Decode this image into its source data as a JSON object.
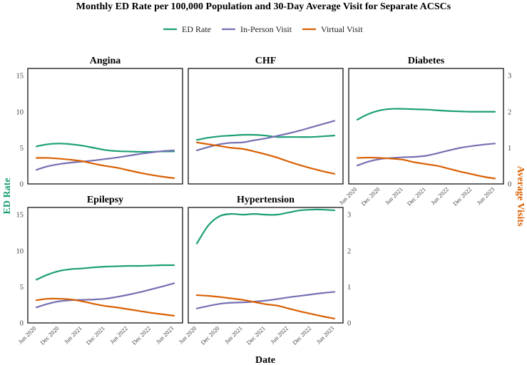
{
  "chart_data": {
    "type": "line",
    "title": "Monthly ED Rate per 100,000 Population and 30-Day Average Visit for Separate ACSCs",
    "xlabel": "Date",
    "ylabel_left": "ED Rate",
    "ylabel_right": "Average Visits",
    "x_ticks": [
      "Jun 2020",
      "Dec 2020",
      "Jun 2021",
      "Dec 2021",
      "Jun 2022",
      "Dec 2022",
      "Jun 2023"
    ],
    "x": [
      0,
      3,
      6,
      9,
      12,
      15,
      18,
      21,
      24,
      27,
      30,
      33,
      36
    ],
    "left_ticks": [
      "0",
      "5",
      "10",
      "15"
    ],
    "right_ticks": [
      "0",
      "1",
      "2",
      "3"
    ],
    "ylim_left": [
      0,
      16
    ],
    "ylim_right": [
      0,
      3.2
    ],
    "legend": [
      "ED Rate",
      "In-Person Visit",
      "Virtual Visit"
    ],
    "legend_position": "top-center",
    "colors": {
      "ed_rate": "#1b9e77",
      "in_person": "#7570b3",
      "virtual": "#d95f02"
    },
    "panels": [
      {
        "name": "Angina",
        "ed_rate": [
          5.2,
          5.5,
          5.6,
          5.5,
          5.3,
          5.0,
          4.7,
          4.55,
          4.5,
          4.45,
          4.45,
          4.5,
          4.5
        ],
        "in_person": [
          0.39,
          0.49,
          0.55,
          0.59,
          0.62,
          0.65,
          0.69,
          0.73,
          0.78,
          0.83,
          0.87,
          0.91,
          0.93
        ],
        "virtual": [
          0.72,
          0.72,
          0.7,
          0.67,
          0.63,
          0.56,
          0.5,
          0.45,
          0.38,
          0.31,
          0.25,
          0.2,
          0.16
        ]
      },
      {
        "name": "CHF",
        "ed_rate": [
          6.1,
          6.4,
          6.6,
          6.7,
          6.8,
          6.8,
          6.7,
          6.5,
          6.5,
          6.5,
          6.5,
          6.6,
          6.7
        ],
        "in_person": [
          0.93,
          1.02,
          1.1,
          1.14,
          1.15,
          1.21,
          1.26,
          1.33,
          1.4,
          1.48,
          1.57,
          1.66,
          1.75
        ],
        "virtual": [
          1.15,
          1.1,
          1.05,
          1.0,
          0.97,
          0.9,
          0.82,
          0.73,
          0.62,
          0.52,
          0.43,
          0.35,
          0.28
        ]
      },
      {
        "name": "Diabetes",
        "ed_rate": [
          8.9,
          9.7,
          10.2,
          10.4,
          10.4,
          10.35,
          10.3,
          10.2,
          10.1,
          10.05,
          10.0,
          10.0,
          10.0
        ],
        "in_person": [
          0.51,
          0.62,
          0.69,
          0.72,
          0.74,
          0.75,
          0.78,
          0.85,
          0.93,
          1.0,
          1.05,
          1.09,
          1.12
        ],
        "virtual": [
          0.72,
          0.73,
          0.72,
          0.7,
          0.67,
          0.6,
          0.55,
          0.5,
          0.42,
          0.34,
          0.27,
          0.2,
          0.15
        ]
      },
      {
        "name": "Epilepsy",
        "ed_rate": [
          6.0,
          6.7,
          7.2,
          7.45,
          7.55,
          7.7,
          7.8,
          7.85,
          7.9,
          7.9,
          7.95,
          8.0,
          8.0
        ],
        "in_person": [
          0.43,
          0.53,
          0.6,
          0.63,
          0.64,
          0.65,
          0.67,
          0.72,
          0.78,
          0.85,
          0.93,
          1.01,
          1.1
        ],
        "virtual": [
          0.63,
          0.67,
          0.67,
          0.65,
          0.6,
          0.53,
          0.47,
          0.43,
          0.38,
          0.33,
          0.28,
          0.24,
          0.2
        ]
      },
      {
        "name": "Hypertension",
        "ed_rate": [
          11.0,
          13.5,
          14.8,
          15.1,
          15.0,
          15.1,
          15.0,
          15.0,
          15.3,
          15.6,
          15.7,
          15.7,
          15.6
        ],
        "in_person": [
          0.4,
          0.47,
          0.53,
          0.56,
          0.57,
          0.59,
          0.62,
          0.66,
          0.71,
          0.75,
          0.79,
          0.83,
          0.86
        ],
        "virtual": [
          0.77,
          0.75,
          0.72,
          0.68,
          0.64,
          0.58,
          0.52,
          0.48,
          0.4,
          0.32,
          0.25,
          0.18,
          0.12
        ]
      }
    ]
  }
}
